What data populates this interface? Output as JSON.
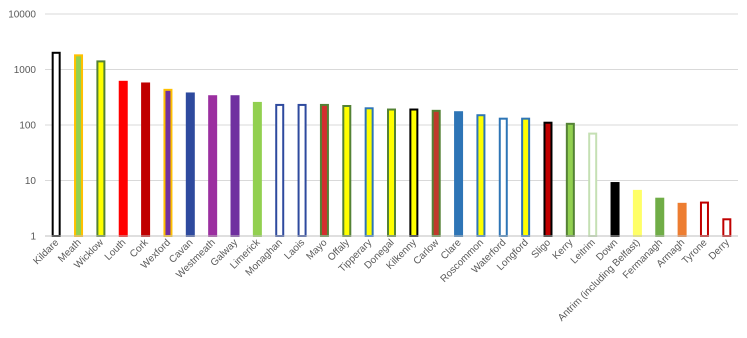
{
  "chart_data": {
    "type": "bar",
    "title": "",
    "xlabel": "",
    "ylabel": "",
    "yscale": "log",
    "ylim": [
      1,
      10000
    ],
    "yticks": [
      "1",
      "10",
      "100",
      "1000",
      "10000"
    ],
    "grid": "horizontal",
    "legend": "none",
    "categories": [
      "Kildare",
      "Meath",
      "Wicklow",
      "Louth",
      "Cork",
      "Wexford",
      "Cavan",
      "Westmeath",
      "Galway",
      "Limerick",
      "Monaghan",
      "Laois",
      "Mayo",
      "Offaly",
      "Tipperary",
      "Donegal",
      "Kilkenny",
      "Carlow",
      "Clare",
      "Roscommon",
      "Waterford",
      "Longford",
      "Sligo",
      "Kerry",
      "Leitrim",
      "Down",
      "Antrim (including Belfast)",
      "Fermanagh",
      "Armagh",
      "Tyrone",
      "Derry"
    ],
    "values": [
      2000,
      1800,
      1400,
      600,
      560,
      430,
      370,
      330,
      330,
      250,
      230,
      230,
      230,
      220,
      200,
      190,
      190,
      180,
      170,
      150,
      130,
      130,
      110,
      105,
      70,
      9,
      6.5,
      4.7,
      3.8,
      4,
      2
    ],
    "bar_fill": [
      "#ffffff",
      "#92d050",
      "#ffff00",
      "#ff0000",
      "#c00000",
      "#7030a0",
      "#2e4a9e",
      "#9b2fa0",
      "#7030a0",
      "#92d050",
      "#ffffff",
      "#ffffff",
      "#d32f2f",
      "#ffff00",
      "#ffff00",
      "#ffff00",
      "#ffff00",
      "#c0392b",
      "#2e75b6",
      "#ffff00",
      "#ffffff",
      "#ffff00",
      "#c00000",
      "#92d050",
      "#ffffff",
      "#000000",
      "#ffff66",
      "#70ad47",
      "#ed7d31",
      "#ffffff",
      "#ffffff"
    ],
    "bar_edge": [
      "#000000",
      "#ffc000",
      "#548235",
      "#ff0000",
      "#c00000",
      "#ffc000",
      "#2e4a9e",
      "#9b2fa0",
      "#7030a0",
      "#92d050",
      "#2e4a9e",
      "#2e4a9e",
      "#548235",
      "#548235",
      "#2e75b6",
      "#548235",
      "#000000",
      "#548235",
      "#2e75b6",
      "#2e75b6",
      "#2e75b6",
      "#2e75b6",
      "#000000",
      "#548235",
      "#c5e0b4",
      "#000000",
      "#ffff66",
      "#70ad47",
      "#ed7d31",
      "#c00000",
      "#c00000"
    ]
  }
}
